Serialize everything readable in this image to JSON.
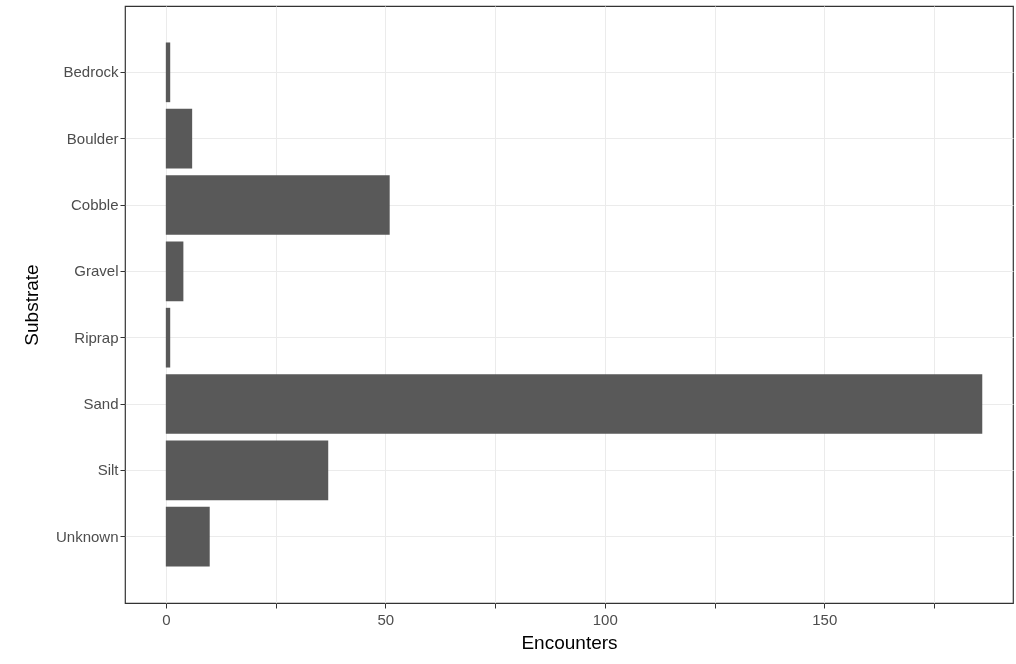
{
  "chart_data": {
    "type": "bar",
    "orientation": "horizontal",
    "xlabel": "Encounters",
    "ylabel": "Substrate",
    "categories": [
      "Bedrock",
      "Boulder",
      "Cobble",
      "Gravel",
      "Riprap",
      "Sand",
      "Silt",
      "Unknown"
    ],
    "values": [
      1,
      6,
      51,
      4,
      1,
      186,
      37,
      10
    ],
    "color": "#595959",
    "xlim": [
      -9.3,
      193
    ],
    "xticks": [
      0,
      {
        "value": 25,
        "label": null
      },
      50,
      {
        "value": 75,
        "label": null
      },
      100,
      {
        "value": 125,
        "label": null
      },
      150,
      {
        "value": 175,
        "label": null
      }
    ],
    "grid": true
  }
}
